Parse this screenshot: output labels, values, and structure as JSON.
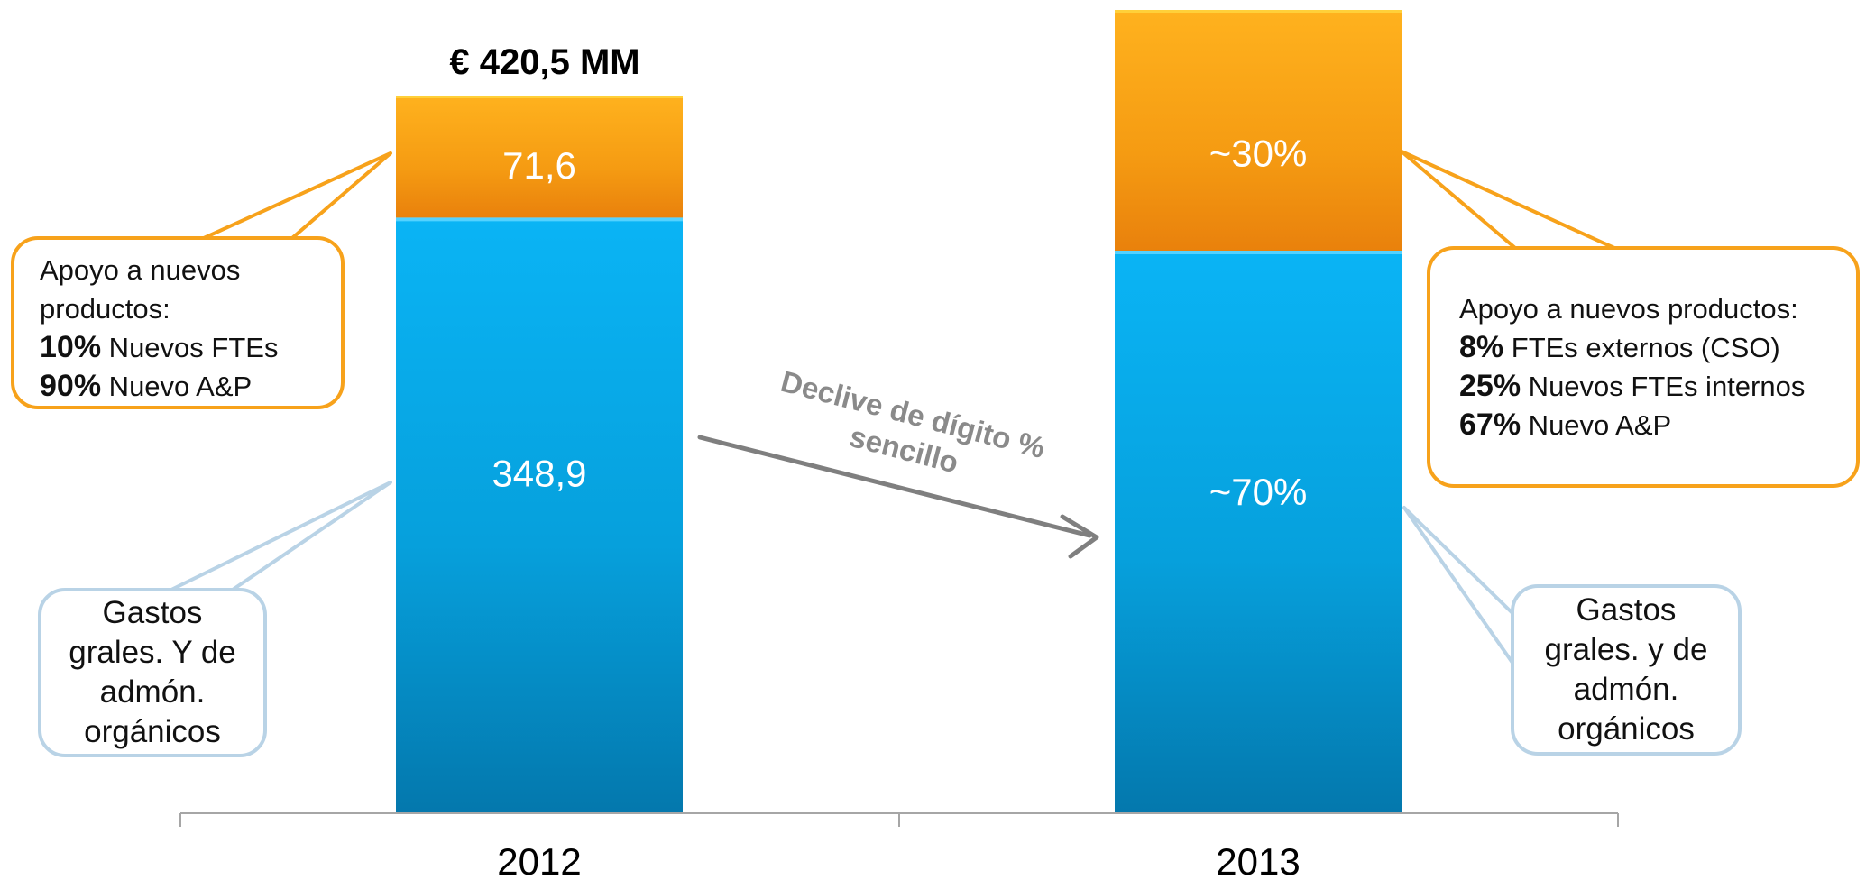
{
  "colors": {
    "bottom_segment": "#07A8E6",
    "top_segment": "#F7A21B",
    "orange_callout_border": "#F7A21B",
    "blue_callout_border": "#B9D3E6",
    "arrow": "#7F7F7F"
  },
  "chart_data": {
    "type": "bar",
    "stacked": true,
    "categories": [
      "2012",
      "2013"
    ],
    "series": [
      {
        "segment": "bottom",
        "color": "#07A8E6",
        "values": [
          348.9,
          0.7
        ],
        "labels": [
          "348,9",
          "~70%"
        ]
      },
      {
        "segment": "top",
        "color": "#F7A21B",
        "values": [
          71.6,
          0.3
        ],
        "labels": [
          "71,6",
          "~30%"
        ]
      }
    ],
    "bar_totals": [
      "€ 420,5 MM",
      ""
    ],
    "annotation": "Declive de dígito % sencillo",
    "annotation_lines": [
      "Declive de dígito %",
      "sencillo"
    ],
    "legend": "none",
    "grid": false
  },
  "callouts": {
    "new_products_2012": {
      "lines": [
        {
          "pct": "",
          "text": "Apoyo a nuevos"
        },
        {
          "pct": "",
          "text": "productos:"
        },
        {
          "pct": "10%",
          "text": " Nuevos FTEs"
        },
        {
          "pct": "90%",
          "text": " Nuevo A&P"
        }
      ]
    },
    "organic_2012": {
      "lines": [
        "Gastos",
        "grales. Y de",
        "admón.",
        "orgánicos"
      ]
    },
    "new_products_2013": {
      "lines": [
        {
          "pct": "",
          "text": "Apoyo a nuevos productos:"
        },
        {
          "pct": "8%",
          "text": " FTEs externos (CSO)"
        },
        {
          "pct": "25%",
          "text": " Nuevos FTEs internos"
        },
        {
          "pct": "67%",
          "text": " Nuevo A&P"
        }
      ]
    },
    "organic_2013": {
      "lines": [
        "Gastos",
        "grales. y de",
        "admón.",
        "orgánicos"
      ]
    }
  }
}
